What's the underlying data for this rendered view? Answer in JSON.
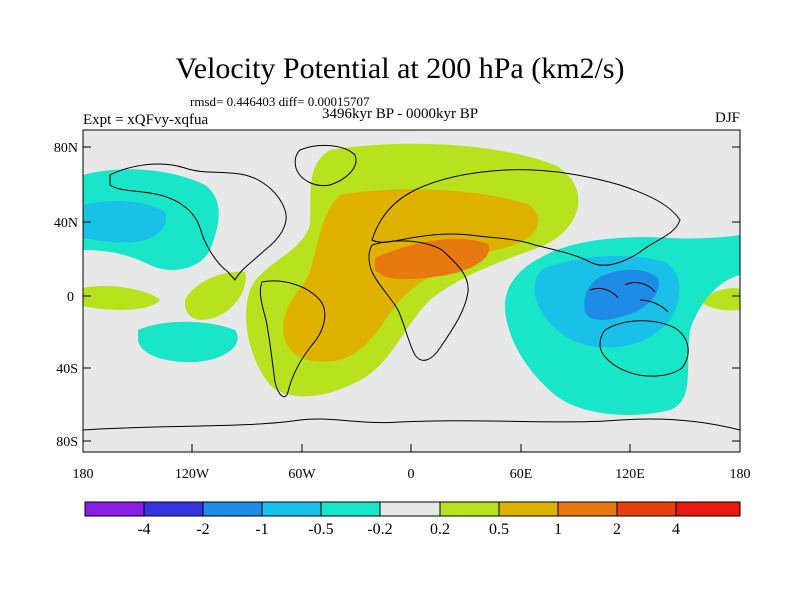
{
  "header": {
    "title": "Velocity Potential at 200 hPa (km2/s)",
    "stats": "rmsd= 0.446403 diff= 0.00015707",
    "period": "3496kyr BP - 0000kyr BP",
    "experiment": "Expt = xQFvy-xqfua",
    "season": "DJF"
  },
  "axes": {
    "lat_labels": [
      "80N",
      "40N",
      "0",
      "40S",
      "80S"
    ],
    "lon_labels": [
      "180",
      "120W",
      "60W",
      "0",
      "60E",
      "120E",
      "180"
    ]
  },
  "colorbar": {
    "labels": [
      "-4",
      "-2",
      "-1",
      "-0.5",
      "-0.2",
      "0.2",
      "0.5",
      "1",
      "2",
      "4"
    ],
    "colors": [
      "#8a1ee6",
      "#3333e0",
      "#1e8ce6",
      "#19c0e8",
      "#19e6c8",
      "#e8e8e8",
      "#b8e21e",
      "#e0b200",
      "#e87810",
      "#e64010",
      "#e61a10"
    ]
  },
  "palette": {
    "land_outline": "#000000",
    "neutral": "#e8e8e8"
  }
}
